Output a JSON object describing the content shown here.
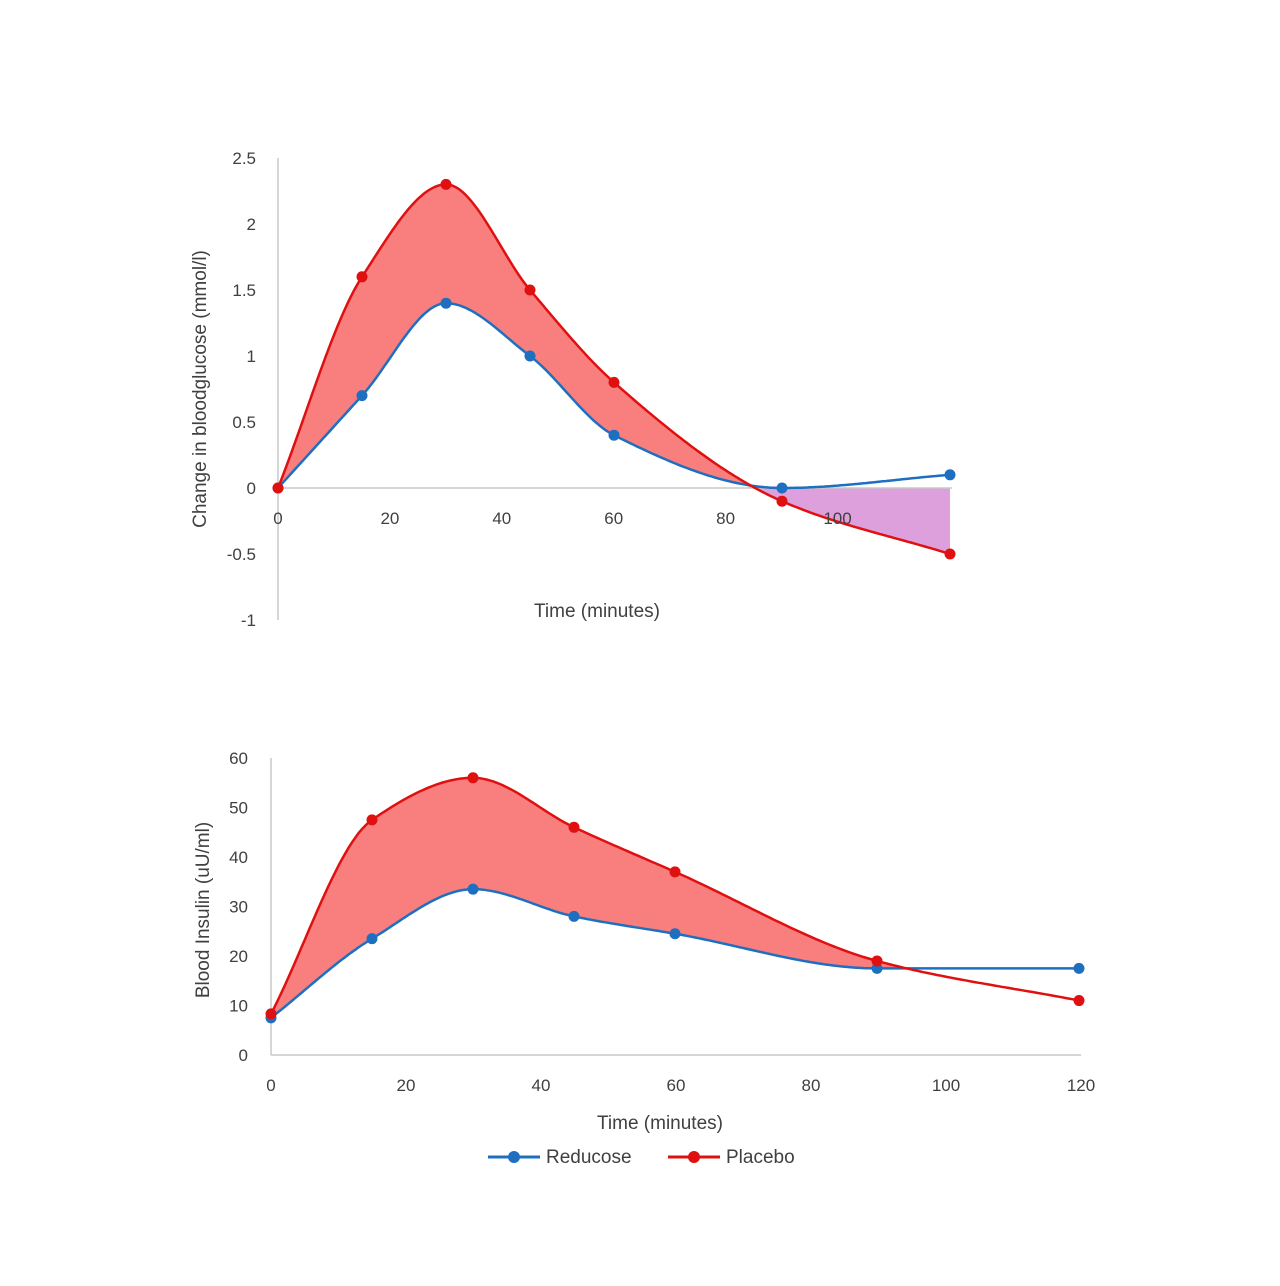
{
  "colors": {
    "reducose": "#1f6fc0",
    "placebo": "#e01010",
    "fill_positive": "#f97f7f",
    "fill_negative": "#dda0dd",
    "axis": "#c8c8c8"
  },
  "legend": {
    "position": "bottom-center",
    "items": [
      {
        "name": "Reducose",
        "color": "#1f6fc0",
        "marker": "circle"
      },
      {
        "name": "Placebo",
        "color": "#e01010",
        "marker": "circle"
      }
    ]
  },
  "chart_data": [
    {
      "type": "line",
      "title": "",
      "xlabel": "Time (minutes)",
      "ylabel": "Change in bloodglucose (mmol/l)",
      "xlim": [
        0,
        120
      ],
      "ylim": [
        -1,
        2.5
      ],
      "x_ticks": [
        "0",
        "20",
        "40",
        "60",
        "80",
        "100"
      ],
      "y_ticks": [
        "2.5",
        "2",
        "1.5",
        "1",
        "0.5",
        "0",
        "-0.5",
        "-1"
      ],
      "grid": false,
      "series": [
        {
          "name": "Reducose",
          "x": [
            0,
            15,
            30,
            45,
            60,
            90,
            120
          ],
          "y": [
            0,
            0.7,
            1.4,
            1.0,
            0.4,
            0.0,
            0.1
          ]
        },
        {
          "name": "Placebo",
          "x": [
            0,
            15,
            30,
            45,
            60,
            90,
            120
          ],
          "y": [
            0,
            1.6,
            2.3,
            1.5,
            0.8,
            -0.1,
            -0.5
          ]
        }
      ]
    },
    {
      "type": "line",
      "title": "",
      "xlabel": "Time (minutes)",
      "ylabel": "Blood Insulin (uU/ml)",
      "xlim": [
        0,
        120
      ],
      "ylim": [
        0,
        60
      ],
      "x_ticks": [
        "0",
        "20",
        "40",
        "60",
        "80",
        "100",
        "120"
      ],
      "y_ticks": [
        "60",
        "50",
        "40",
        "30",
        "20",
        "10",
        "0"
      ],
      "grid": false,
      "series": [
        {
          "name": "Reducose",
          "x": [
            0,
            15,
            30,
            45,
            60,
            90,
            120
          ],
          "y": [
            7.5,
            23.5,
            33.5,
            28,
            24.5,
            17.5,
            17.5
          ]
        },
        {
          "name": "Placebo",
          "x": [
            0,
            15,
            30,
            45,
            60,
            90,
            120
          ],
          "y": [
            8.3,
            47.5,
            56,
            46,
            37,
            19,
            11
          ]
        }
      ]
    }
  ]
}
